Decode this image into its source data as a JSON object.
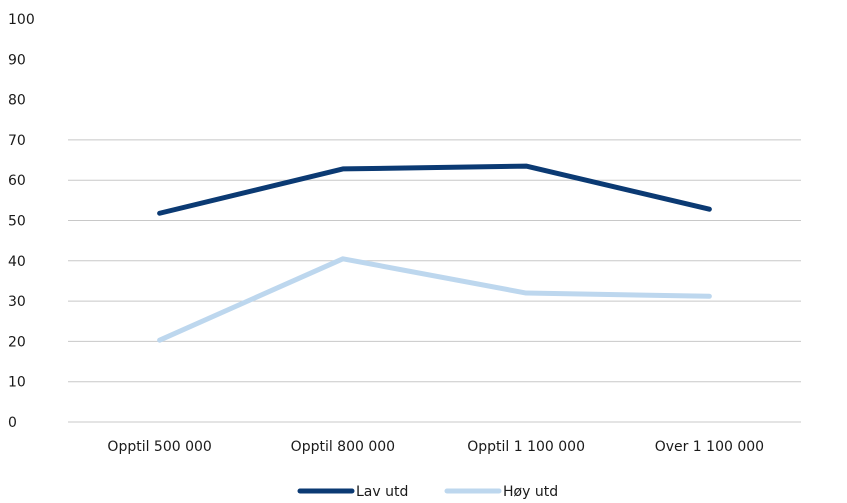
{
  "chart_data": {
    "type": "line",
    "title": "",
    "xlabel": "",
    "ylabel": "",
    "categories": [
      "Opptil 500 000",
      "Opptil 800 000",
      "Opptil 1 100 000",
      "Over 1 100 000"
    ],
    "ylim": [
      0,
      100
    ],
    "yticks": [
      0,
      10,
      20,
      30,
      40,
      50,
      60,
      70,
      80,
      90,
      100
    ],
    "grid": true,
    "legend": "bottom",
    "series": [
      {
        "name": "Lav utd",
        "color": "#0b3a73",
        "values": [
          51.8,
          62.8,
          63.5,
          52.8
        ]
      },
      {
        "name": "Høy utd",
        "color": "#bdd7ee",
        "values": [
          20.3,
          40.5,
          32.0,
          31.2
        ]
      }
    ]
  }
}
